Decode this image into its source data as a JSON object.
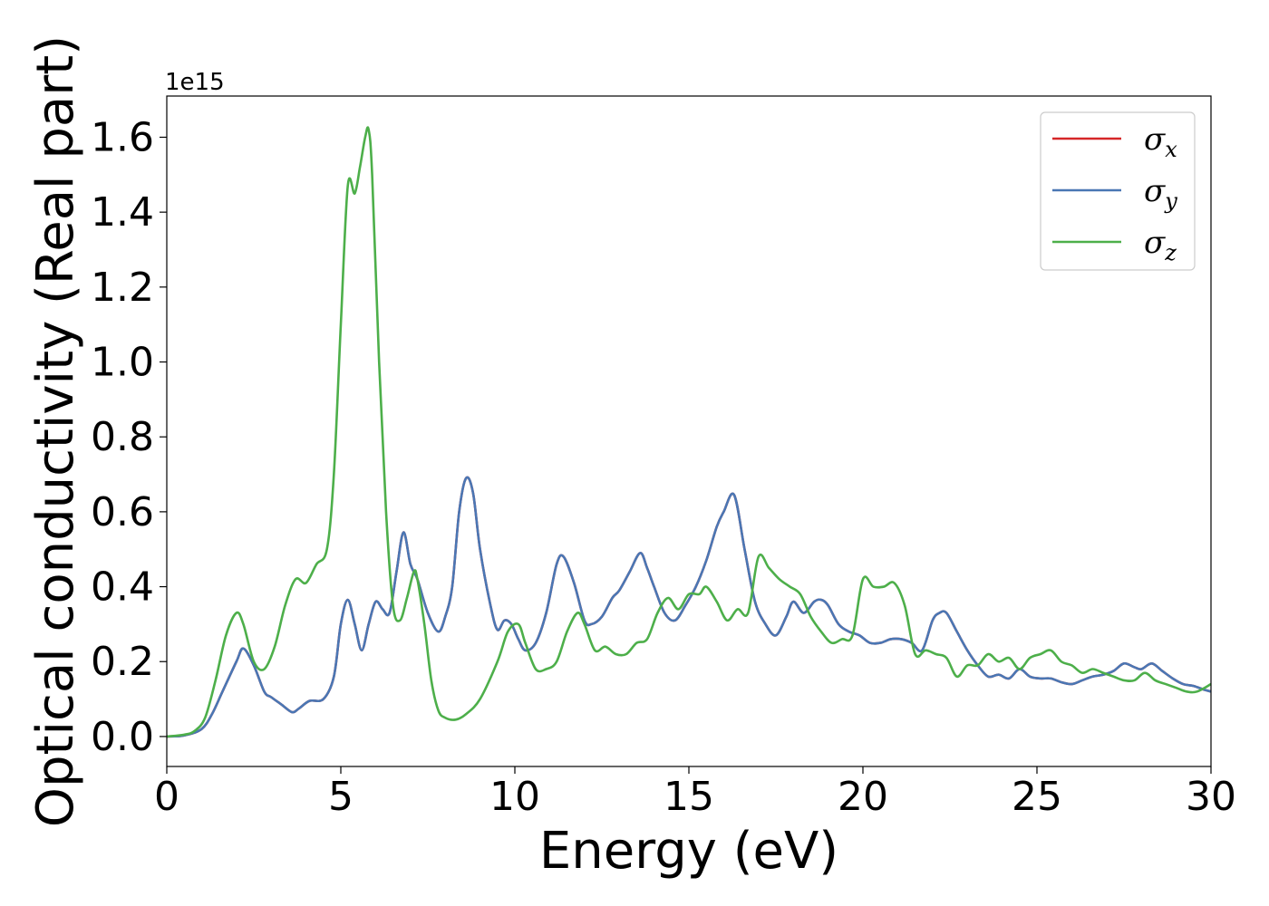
{
  "chart_data": {
    "type": "line",
    "title": "",
    "xlabel": "Energy (eV)",
    "ylabel": "Optical conductivity (Real part)",
    "y_offset_label": "1e15",
    "xlim": [
      0,
      30
    ],
    "ylim": [
      -0.08,
      1.71
    ],
    "xticks": [
      0,
      5,
      10,
      15,
      20,
      25,
      30
    ],
    "xtick_labels": [
      "0",
      "5",
      "10",
      "15",
      "20",
      "25",
      "30"
    ],
    "yticks": [
      0.0,
      0.2,
      0.4,
      0.6,
      0.8,
      1.0,
      1.2,
      1.4,
      1.6
    ],
    "ytick_labels": [
      "0.0",
      "0.2",
      "0.4",
      "0.6",
      "0.8",
      "1.0",
      "1.2",
      "1.4",
      "1.6"
    ],
    "grid": false,
    "legend_position": "top-right",
    "series": [
      {
        "name": "σ",
        "subscript": "x",
        "color": "#d62728",
        "x": [
          0,
          0.5,
          1.0,
          1.3,
          1.6,
          2.0,
          2.2,
          2.5,
          2.8,
          3.0,
          3.3,
          3.6,
          3.8,
          4.1,
          4.5,
          4.8,
          5.0,
          5.2,
          5.4,
          5.6,
          5.8,
          6.0,
          6.2,
          6.4,
          6.6,
          6.8,
          7.0,
          7.2,
          7.5,
          7.8,
          8.0,
          8.2,
          8.4,
          8.6,
          8.8,
          9.0,
          9.3,
          9.5,
          9.7,
          9.9,
          10.1,
          10.3,
          10.6,
          10.9,
          11.2,
          11.4,
          11.7,
          12.0,
          12.2,
          12.5,
          12.8,
          13.0,
          13.3,
          13.6,
          13.8,
          14.0,
          14.3,
          14.6,
          14.9,
          15.2,
          15.5,
          15.8,
          16.0,
          16.3,
          16.6,
          16.9,
          17.2,
          17.5,
          17.8,
          18.0,
          18.3,
          18.6,
          18.8,
          19.0,
          19.3,
          19.6,
          19.9,
          20.2,
          20.5,
          20.8,
          21.1,
          21.4,
          21.7,
          22.0,
          22.2,
          22.4,
          22.7,
          23.0,
          23.3,
          23.6,
          23.9,
          24.2,
          24.5,
          24.8,
          25.1,
          25.4,
          25.7,
          26.0,
          26.3,
          26.6,
          26.9,
          27.2,
          27.5,
          27.8,
          28.0,
          28.3,
          28.6,
          28.9,
          29.2,
          29.5,
          29.8,
          30.0
        ],
        "values": [
          0,
          0.003,
          0.02,
          0.06,
          0.12,
          0.2,
          0.235,
          0.19,
          0.12,
          0.105,
          0.085,
          0.065,
          0.075,
          0.095,
          0.1,
          0.16,
          0.3,
          0.365,
          0.3,
          0.23,
          0.3,
          0.36,
          0.34,
          0.33,
          0.44,
          0.545,
          0.46,
          0.42,
          0.33,
          0.28,
          0.32,
          0.4,
          0.6,
          0.69,
          0.65,
          0.5,
          0.35,
          0.285,
          0.31,
          0.3,
          0.26,
          0.23,
          0.25,
          0.33,
          0.46,
          0.48,
          0.41,
          0.31,
          0.3,
          0.32,
          0.37,
          0.39,
          0.44,
          0.49,
          0.45,
          0.4,
          0.33,
          0.31,
          0.35,
          0.4,
          0.47,
          0.56,
          0.6,
          0.645,
          0.5,
          0.36,
          0.3,
          0.27,
          0.32,
          0.36,
          0.33,
          0.36,
          0.365,
          0.35,
          0.3,
          0.28,
          0.27,
          0.25,
          0.25,
          0.26,
          0.26,
          0.25,
          0.23,
          0.31,
          0.33,
          0.33,
          0.28,
          0.23,
          0.19,
          0.16,
          0.165,
          0.155,
          0.18,
          0.16,
          0.155,
          0.155,
          0.145,
          0.14,
          0.15,
          0.16,
          0.165,
          0.175,
          0.195,
          0.185,
          0.18,
          0.195,
          0.175,
          0.155,
          0.14,
          0.135,
          0.125,
          0.12
        ]
      },
      {
        "name": "σ",
        "subscript": "y",
        "color": "#4a77b4",
        "x": [
          0,
          0.5,
          1.0,
          1.3,
          1.6,
          2.0,
          2.2,
          2.5,
          2.8,
          3.0,
          3.3,
          3.6,
          3.8,
          4.1,
          4.5,
          4.8,
          5.0,
          5.2,
          5.4,
          5.6,
          5.8,
          6.0,
          6.2,
          6.4,
          6.6,
          6.8,
          7.0,
          7.2,
          7.5,
          7.8,
          8.0,
          8.2,
          8.4,
          8.6,
          8.8,
          9.0,
          9.3,
          9.5,
          9.7,
          9.9,
          10.1,
          10.3,
          10.6,
          10.9,
          11.2,
          11.4,
          11.7,
          12.0,
          12.2,
          12.5,
          12.8,
          13.0,
          13.3,
          13.6,
          13.8,
          14.0,
          14.3,
          14.6,
          14.9,
          15.2,
          15.5,
          15.8,
          16.0,
          16.3,
          16.6,
          16.9,
          17.2,
          17.5,
          17.8,
          18.0,
          18.3,
          18.6,
          18.8,
          19.0,
          19.3,
          19.6,
          19.9,
          20.2,
          20.5,
          20.8,
          21.1,
          21.4,
          21.7,
          22.0,
          22.2,
          22.4,
          22.7,
          23.0,
          23.3,
          23.6,
          23.9,
          24.2,
          24.5,
          24.8,
          25.1,
          25.4,
          25.7,
          26.0,
          26.3,
          26.6,
          26.9,
          27.2,
          27.5,
          27.8,
          28.0,
          28.3,
          28.6,
          28.9,
          29.2,
          29.5,
          29.8,
          30.0
        ],
        "values": [
          0,
          0.003,
          0.02,
          0.06,
          0.12,
          0.2,
          0.235,
          0.19,
          0.12,
          0.105,
          0.085,
          0.065,
          0.075,
          0.095,
          0.1,
          0.16,
          0.3,
          0.365,
          0.3,
          0.23,
          0.3,
          0.36,
          0.34,
          0.33,
          0.44,
          0.545,
          0.46,
          0.42,
          0.33,
          0.28,
          0.32,
          0.4,
          0.6,
          0.69,
          0.65,
          0.5,
          0.35,
          0.285,
          0.31,
          0.3,
          0.26,
          0.23,
          0.25,
          0.33,
          0.46,
          0.48,
          0.41,
          0.31,
          0.3,
          0.32,
          0.37,
          0.39,
          0.44,
          0.49,
          0.45,
          0.4,
          0.33,
          0.31,
          0.35,
          0.4,
          0.47,
          0.56,
          0.6,
          0.645,
          0.5,
          0.36,
          0.3,
          0.27,
          0.32,
          0.36,
          0.33,
          0.36,
          0.365,
          0.35,
          0.3,
          0.28,
          0.27,
          0.25,
          0.25,
          0.26,
          0.26,
          0.25,
          0.23,
          0.31,
          0.33,
          0.33,
          0.28,
          0.23,
          0.19,
          0.16,
          0.165,
          0.155,
          0.18,
          0.16,
          0.155,
          0.155,
          0.145,
          0.14,
          0.15,
          0.16,
          0.165,
          0.175,
          0.195,
          0.185,
          0.18,
          0.195,
          0.175,
          0.155,
          0.14,
          0.135,
          0.125,
          0.12
        ]
      },
      {
        "name": "σ",
        "subscript": "z",
        "color": "#4daf4a",
        "x": [
          0,
          0.5,
          0.8,
          1.1,
          1.4,
          1.7,
          2.0,
          2.2,
          2.5,
          2.8,
          3.1,
          3.4,
          3.7,
          4.0,
          4.3,
          4.6,
          4.8,
          5.0,
          5.2,
          5.4,
          5.55,
          5.7,
          5.8,
          5.9,
          6.1,
          6.3,
          6.5,
          6.7,
          6.9,
          7.1,
          7.2,
          7.4,
          7.6,
          7.8,
          8.0,
          8.3,
          8.6,
          9.0,
          9.5,
          9.8,
          10.1,
          10.3,
          10.6,
          10.9,
          11.2,
          11.5,
          11.8,
          12.0,
          12.3,
          12.6,
          12.9,
          13.2,
          13.5,
          13.8,
          14.1,
          14.4,
          14.7,
          15.0,
          15.3,
          15.5,
          15.8,
          16.1,
          16.4,
          16.7,
          17.0,
          17.3,
          17.6,
          17.9,
          18.2,
          18.5,
          18.8,
          19.1,
          19.4,
          19.7,
          20.0,
          20.3,
          20.6,
          20.9,
          21.2,
          21.5,
          21.8,
          22.1,
          22.4,
          22.7,
          23.0,
          23.3,
          23.6,
          23.9,
          24.2,
          24.5,
          24.8,
          25.1,
          25.4,
          25.7,
          26.0,
          26.3,
          26.6,
          26.9,
          27.2,
          27.5,
          27.8,
          28.1,
          28.4,
          28.7,
          29.0,
          29.3,
          29.6,
          30.0
        ],
        "values": [
          0,
          0.005,
          0.015,
          0.05,
          0.15,
          0.27,
          0.33,
          0.3,
          0.2,
          0.18,
          0.24,
          0.35,
          0.42,
          0.41,
          0.46,
          0.5,
          0.7,
          1.1,
          1.47,
          1.45,
          1.52,
          1.6,
          1.62,
          1.5,
          1.0,
          0.6,
          0.35,
          0.31,
          0.37,
          0.44,
          0.42,
          0.3,
          0.15,
          0.07,
          0.05,
          0.045,
          0.06,
          0.1,
          0.2,
          0.28,
          0.3,
          0.25,
          0.18,
          0.18,
          0.2,
          0.28,
          0.33,
          0.3,
          0.23,
          0.24,
          0.22,
          0.22,
          0.25,
          0.26,
          0.33,
          0.37,
          0.34,
          0.38,
          0.38,
          0.4,
          0.36,
          0.31,
          0.34,
          0.33,
          0.48,
          0.45,
          0.42,
          0.4,
          0.38,
          0.32,
          0.28,
          0.25,
          0.26,
          0.27,
          0.42,
          0.4,
          0.4,
          0.41,
          0.35,
          0.22,
          0.23,
          0.22,
          0.21,
          0.16,
          0.19,
          0.19,
          0.22,
          0.2,
          0.21,
          0.18,
          0.21,
          0.22,
          0.23,
          0.2,
          0.19,
          0.17,
          0.18,
          0.17,
          0.16,
          0.15,
          0.15,
          0.17,
          0.15,
          0.14,
          0.13,
          0.12,
          0.12,
          0.14
        ]
      }
    ]
  }
}
